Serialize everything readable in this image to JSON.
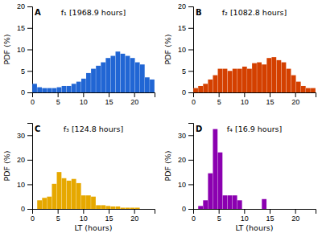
{
  "chart_data": [
    {
      "type": "histogram",
      "title": "f₁ [1968.9 hours]",
      "annotations": [
        "A"
      ],
      "ylabel": "PDF (%)",
      "color": "#2166d4",
      "bins": [
        0,
        0.96,
        1.92,
        2.88,
        3.84,
        4.8,
        5.76,
        6.72,
        7.68,
        8.64,
        9.6,
        10.56,
        11.52,
        12.48,
        13.44,
        14.4,
        15.36,
        16.32,
        17.28,
        18.24,
        19.2,
        20.16,
        21.12,
        22.08,
        23.04,
        24
      ],
      "values": [
        2.0,
        1.2,
        1.0,
        1.0,
        1.0,
        1.2,
        1.5,
        1.5,
        2.0,
        2.5,
        3.2,
        4.5,
        5.5,
        6.2,
        7.0,
        8.0,
        8.5,
        9.5,
        9.0,
        8.5,
        8.0,
        7.0,
        6.5,
        3.5,
        3.0
      ],
      "xlim": [
        0,
        24
      ],
      "xticks": [
        0,
        5,
        10,
        15,
        20
      ],
      "ylim": [
        0,
        20
      ],
      "yticks": [
        0,
        5,
        10,
        15,
        20
      ]
    },
    {
      "type": "histogram",
      "title": "f₂ [1082.8 hours]",
      "annotations": [
        "B"
      ],
      "ylabel": "PDF (%)",
      "color": "#d44000",
      "bins": [
        0,
        0.96,
        1.92,
        2.88,
        3.84,
        4.8,
        5.76,
        6.72,
        7.68,
        8.64,
        9.6,
        10.56,
        11.52,
        12.48,
        13.44,
        14.4,
        15.36,
        16.32,
        17.28,
        18.24,
        19.2,
        20.16,
        21.12,
        22.08,
        23.04,
        24
      ],
      "values": [
        1.0,
        1.5,
        2.0,
        3.0,
        4.0,
        5.5,
        5.5,
        5.0,
        5.5,
        5.5,
        6.0,
        5.5,
        6.8,
        7.0,
        6.5,
        8.0,
        8.2,
        7.5,
        7.0,
        5.5,
        4.0,
        2.5,
        1.5,
        1.0,
        1.0
      ],
      "xlim": [
        0,
        24
      ],
      "xticks": [
        0,
        5,
        10,
        15,
        20
      ],
      "ylim": [
        0,
        20
      ],
      "yticks": [
        0,
        5,
        10,
        15,
        20
      ]
    },
    {
      "type": "histogram",
      "title": "f₃ [124.8 hours]",
      "annotations": [
        "C"
      ],
      "ylabel": "PDF (%)",
      "xlabel": "LT (hours)",
      "color": "#e6a800",
      "bins": [
        0,
        0.96,
        1.92,
        2.88,
        3.84,
        4.8,
        5.76,
        6.72,
        7.68,
        8.64,
        9.6,
        10.56,
        11.52,
        12.48,
        13.44,
        14.4,
        15.36,
        16.32,
        17.28,
        18.24,
        19.2,
        20.16,
        21.12,
        22.08,
        23.04,
        24
      ],
      "values": [
        0.0,
        3.5,
        4.5,
        5.0,
        10.2,
        15.0,
        12.5,
        11.5,
        12.2,
        10.5,
        5.5,
        5.5,
        5.0,
        1.5,
        1.5,
        1.2,
        1.0,
        1.0,
        0.5,
        0.5,
        0.5,
        0.5,
        0.0,
        0.0,
        0.0
      ],
      "xlim": [
        0,
        24
      ],
      "xticks": [
        0,
        5,
        10,
        15,
        20
      ],
      "ylim": [
        0,
        35
      ],
      "yticks": [
        0,
        10,
        20,
        30
      ]
    },
    {
      "type": "histogram",
      "title": "f₄ [16.9 hours]",
      "annotations": [
        "D"
      ],
      "ylabel": "PDF (%)",
      "xlabel": "LT (hours)",
      "color": "#8b00b0",
      "bins": [
        0,
        0.96,
        1.92,
        2.88,
        3.84,
        4.8,
        5.76,
        6.72,
        7.68,
        8.64,
        9.6,
        10.56,
        11.52,
        12.48,
        13.44,
        14.4,
        15.36,
        16.32,
        17.28,
        18.24,
        19.2,
        20.16,
        21.12,
        22.08,
        23.04,
        24
      ],
      "values": [
        0.0,
        1.2,
        3.5,
        14.5,
        32.5,
        23.0,
        5.5,
        5.5,
        5.5,
        3.5,
        0.0,
        0.0,
        0.0,
        0.0,
        4.0,
        0.0,
        0.0,
        0.0,
        0.0,
        0.0,
        0.0,
        0.0,
        0.0,
        0.0,
        0.0
      ],
      "xlim": [
        0,
        24
      ],
      "xticks": [
        0,
        5,
        10,
        15,
        20
      ],
      "ylim": [
        0,
        35
      ],
      "yticks": [
        0,
        10,
        20,
        30
      ]
    }
  ]
}
